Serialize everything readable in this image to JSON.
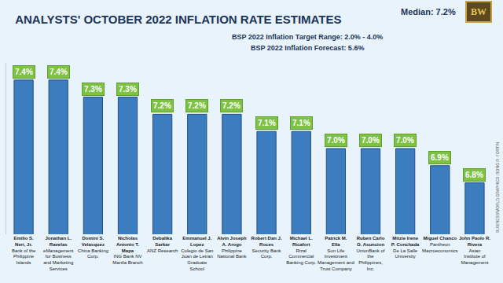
{
  "chart_data": {
    "type": "bar",
    "title": "ANALYSTS' OCTOBER 2022 INFLATION RATE ESTIMATES",
    "annotations": {
      "median": "Median: 7.2%",
      "target": "BSP 2022 Inflation Target Range: 2.0% - 4.0%",
      "forecast": "BSP 2022 Inflation Forecast: 5.6%",
      "logo": "BW",
      "credit": "BUSINESSWORLD GRAPHICS: BONG R. FORTIN"
    },
    "categories": [
      "Emilio S. Neri, Jr.",
      "Jonathan L. Ravelas",
      "Domini S. Velasquez",
      "Nicholas Antonio T. Mapa",
      "Debalika Sarkar",
      "Emmanuel J. Lopez",
      "Alvin Joseph A. Arogo",
      "Robert Dan J. Roces",
      "Michael L. Ricafort",
      "Patrick M. Ella",
      "Ruben Carlo O. Asuncion",
      "Mitzie Irene P. Conchada",
      "Miguel Chanco",
      "John Paolo R. Rivera"
    ],
    "affiliations": [
      "Bank of the Philippine Islands",
      "eManagement for Business and Marketing Services",
      "China Banking Corp.",
      "ING Bank NV Manila Branch",
      "ANZ Research",
      "Colegio de San Juan de Letran Graduate School",
      "Philippine National Bank",
      "Security Bank Corp.",
      "Rizal Commercial Banking Corp.",
      "Sun Life Investment Management and Trust Company",
      "UnionBank of the Philippines, Inc.",
      "De La Salle University",
      "Pantheon Macroeconomics",
      "Asian Institute of Management"
    ],
    "values": [
      7.4,
      7.4,
      7.3,
      7.3,
      7.2,
      7.2,
      7.2,
      7.1,
      7.1,
      7.0,
      7.0,
      7.0,
      6.9,
      6.8
    ],
    "value_labels": [
      "7.4%",
      "7.4%",
      "7.3%",
      "7.3%",
      "7.2%",
      "7.2%",
      "7.2%",
      "7.1%",
      "7.1%",
      "7.0%",
      "7.0%",
      "7.0%",
      "6.9%",
      "6.8%"
    ],
    "color": "#3b7dbf",
    "ylim": [
      6.5,
      7.5
    ],
    "tick_labels": "x",
    "data_labels": true,
    "grid": false
  }
}
